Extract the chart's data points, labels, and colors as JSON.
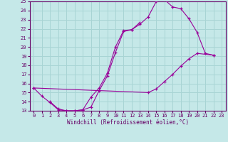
{
  "xlabel": "Windchill (Refroidissement éolien,°C)",
  "xlim": [
    -0.5,
    23.5
  ],
  "ylim": [
    13,
    25
  ],
  "xticks": [
    0,
    1,
    2,
    3,
    4,
    5,
    6,
    7,
    8,
    9,
    10,
    11,
    12,
    13,
    14,
    15,
    16,
    17,
    18,
    19,
    20,
    21,
    22,
    23
  ],
  "yticks": [
    13,
    14,
    15,
    16,
    17,
    18,
    19,
    20,
    21,
    22,
    23,
    24,
    25
  ],
  "bg_color": "#c5e8e8",
  "grid_color": "#a8d4d4",
  "line_color": "#990099",
  "curve1_x": [
    0,
    1,
    2,
    3,
    4,
    5,
    6,
    7,
    8,
    9,
    10,
    11,
    12,
    13,
    14,
    15,
    16,
    17,
    18,
    19,
    20,
    21,
    22
  ],
  "curve1_y": [
    15.5,
    14.6,
    13.9,
    13.1,
    13.0,
    13.0,
    13.1,
    13.4,
    15.2,
    16.8,
    19.4,
    21.7,
    21.9,
    22.5,
    23.3,
    25.0,
    25.2,
    24.4,
    24.2,
    23.1,
    21.6,
    19.3,
    19.1
  ],
  "curve2_x": [
    2,
    3,
    4,
    5,
    6,
    7,
    8,
    9,
    10,
    11,
    12,
    13
  ],
  "curve2_y": [
    14.0,
    13.2,
    13.0,
    13.0,
    13.1,
    14.5,
    15.5,
    17.1,
    20.0,
    21.8,
    21.9,
    22.7
  ],
  "curve3_x": [
    0,
    14,
    15,
    16,
    17,
    18,
    19,
    20,
    22
  ],
  "curve3_y": [
    15.5,
    15.0,
    15.4,
    16.2,
    17.0,
    17.9,
    18.7,
    19.3,
    19.1
  ]
}
